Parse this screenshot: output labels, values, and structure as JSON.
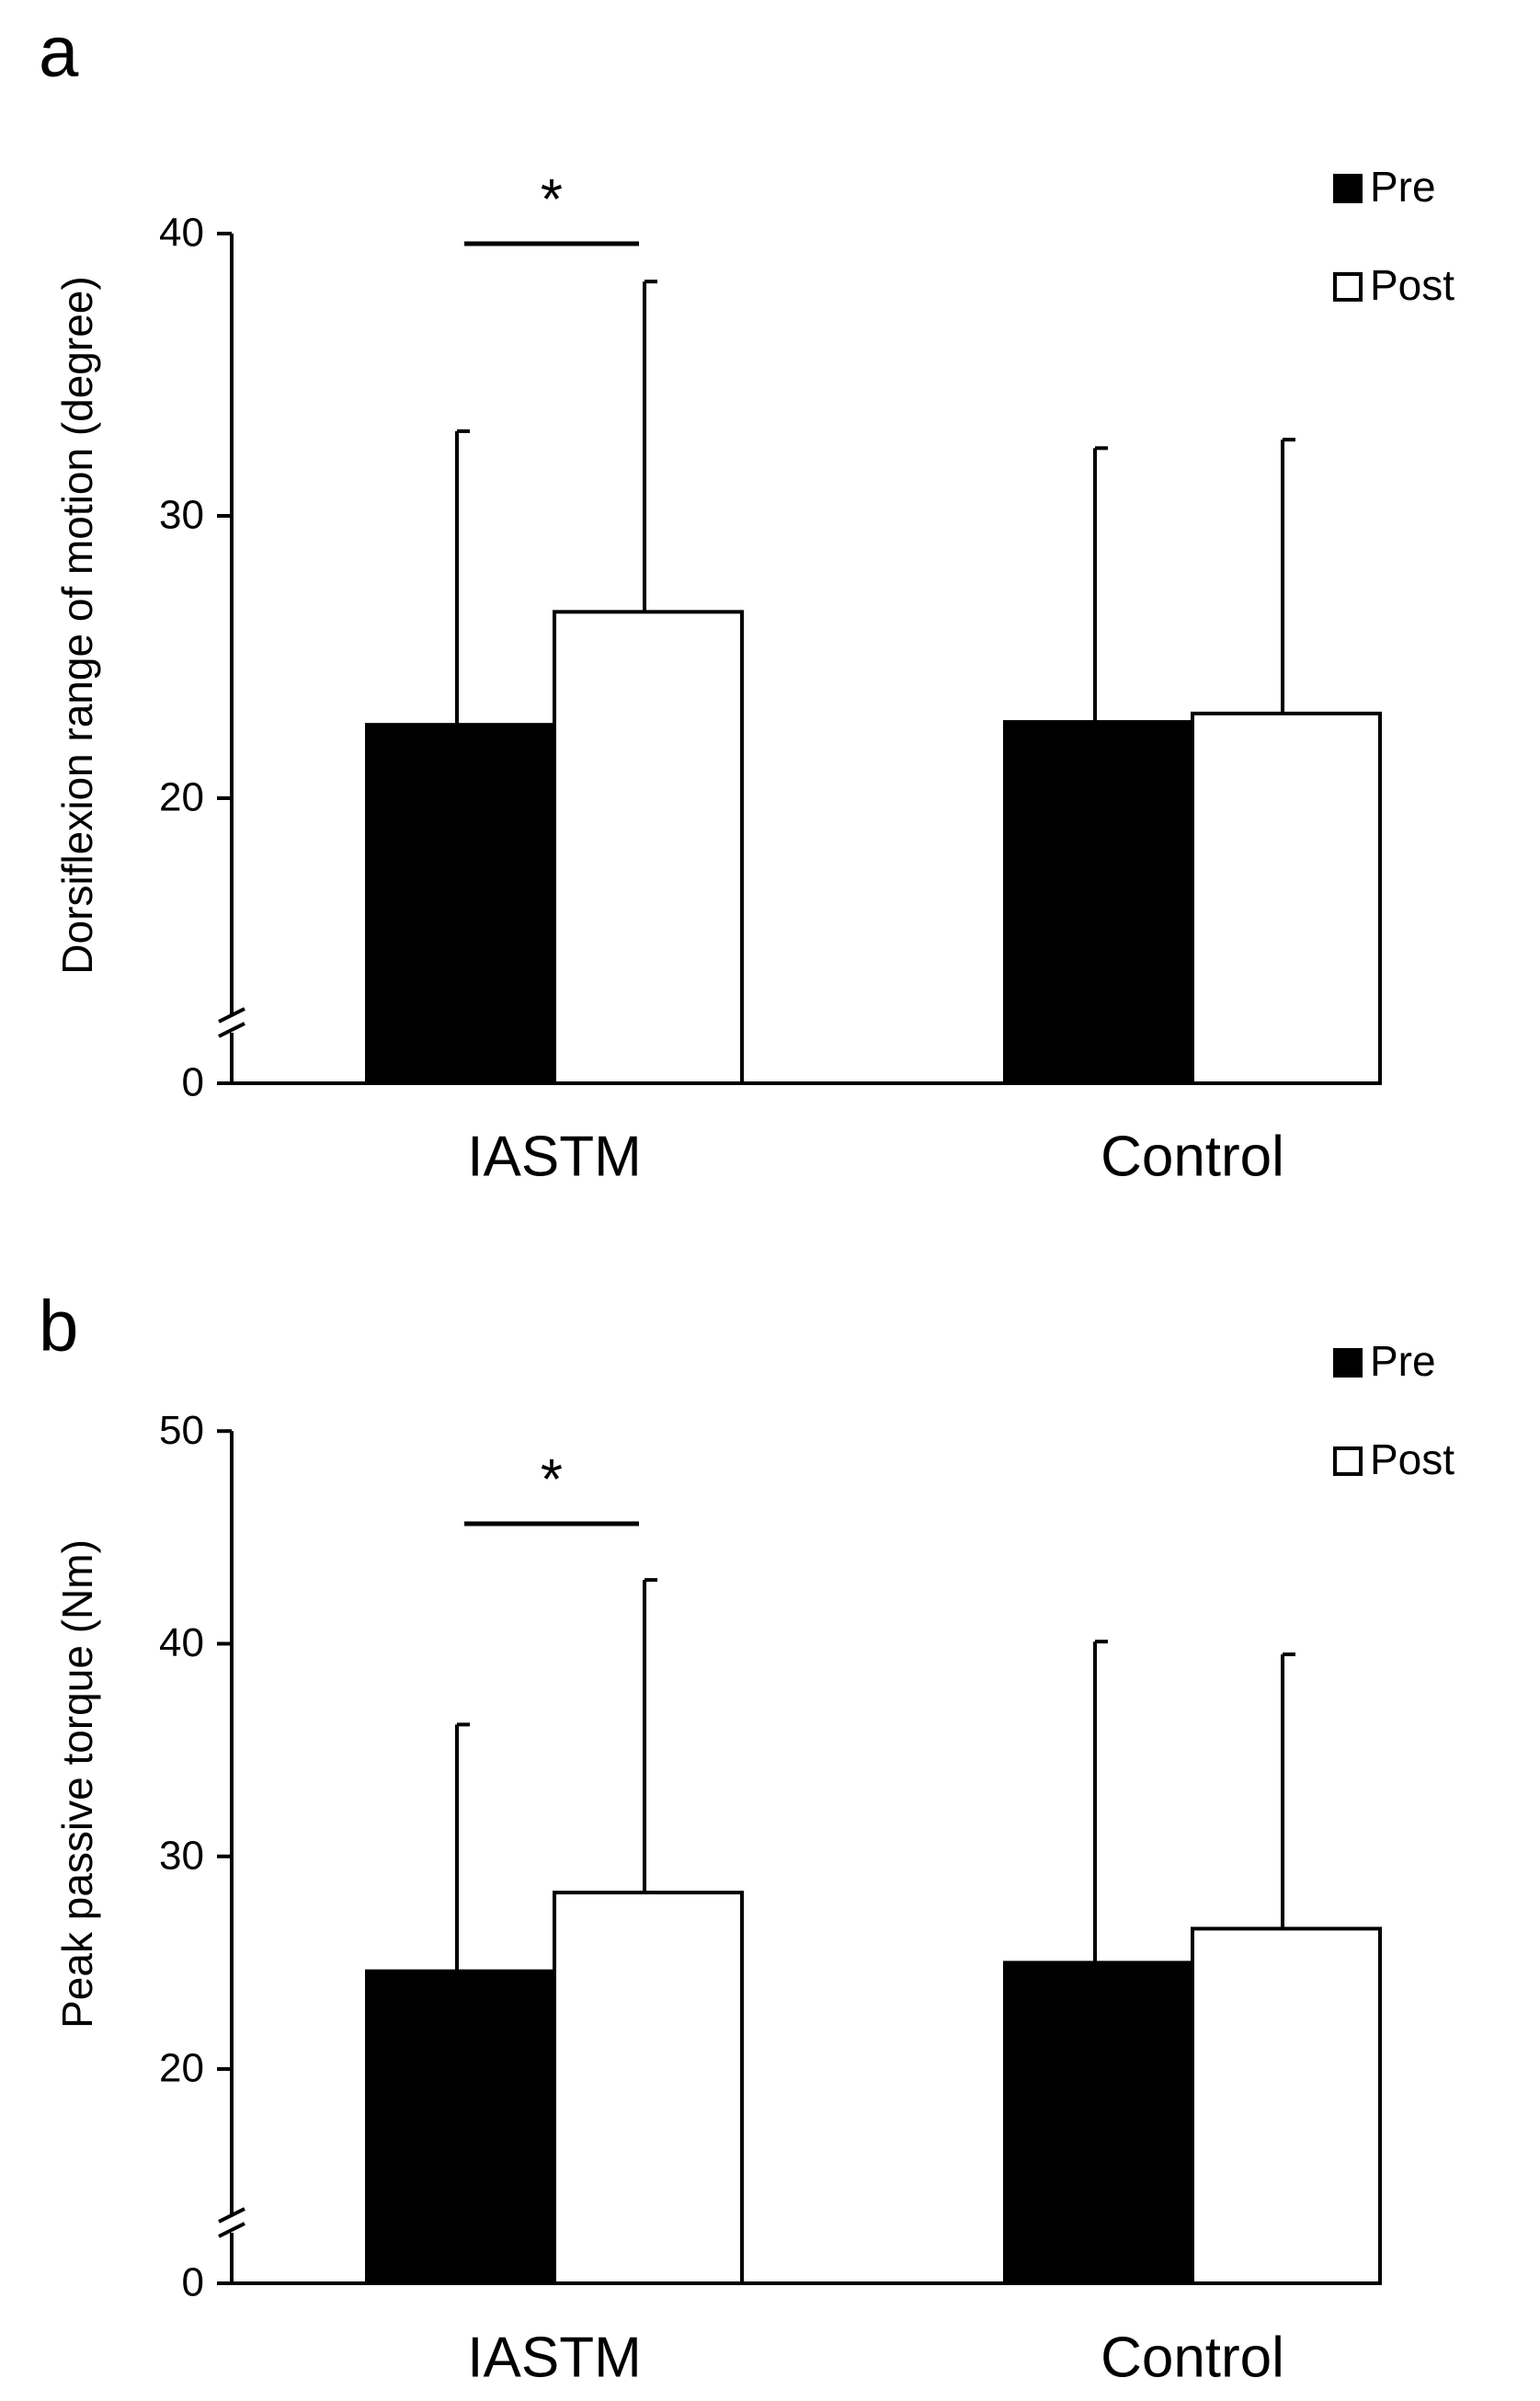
{
  "chart_data": [
    {
      "type": "bar",
      "panel_label": "a",
      "title": "",
      "ylabel": "Dorsiflexion range of motion (degree)",
      "xlabel": "",
      "categories": [
        "IASTM",
        "Control"
      ],
      "series": [
        {
          "name": "Pre",
          "fill": "#000000",
          "values": [
            22.6,
            22.7
          ],
          "sd": [
            10.4,
            9.7
          ]
        },
        {
          "name": "Post",
          "fill": "#ffffff",
          "values": [
            26.6,
            23.0
          ],
          "sd": [
            11.7,
            9.7
          ]
        }
      ],
      "ylim": [
        0,
        40
      ],
      "axis_break": [
        0,
        17
      ],
      "yticks": [
        0,
        20,
        30,
        40
      ],
      "yticklabels": [
        "0",
        "20",
        "30",
        "40"
      ],
      "significance": [
        {
          "category": "IASTM",
          "label": "*"
        }
      ],
      "legend_position": "top-right",
      "grid": false
    },
    {
      "type": "bar",
      "panel_label": "b",
      "title": "",
      "ylabel": "Peak passive torque (Nm)",
      "xlabel": "",
      "categories": [
        "IASTM",
        "Control"
      ],
      "series": [
        {
          "name": "Pre",
          "fill": "#000000",
          "values": [
            24.6,
            25.0
          ],
          "sd": [
            11.6,
            15.1
          ]
        },
        {
          "name": "Post",
          "fill": "#ffffff",
          "values": [
            28.3,
            26.6
          ],
          "sd": [
            14.7,
            12.9
          ]
        }
      ],
      "ylim": [
        0,
        50
      ],
      "axis_break": [
        0,
        15
      ],
      "yticks": [
        0,
        20,
        30,
        40,
        50
      ],
      "yticklabels": [
        "0",
        "20",
        "30",
        "40",
        "50"
      ],
      "significance": [
        {
          "category": "IASTM",
          "label": "*"
        }
      ],
      "legend_position": "top-right",
      "grid": false
    }
  ]
}
